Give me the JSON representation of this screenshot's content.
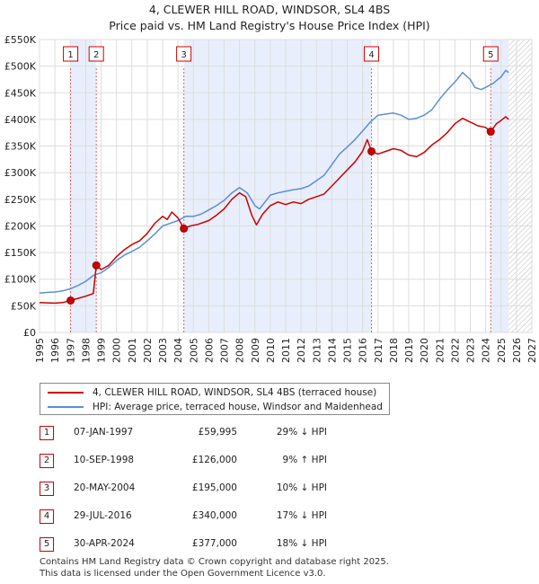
{
  "chart_data": {
    "type": "line",
    "title": "4, CLEWER HILL ROAD, WINDSOR, SL4 4BS",
    "subtitle": "Price paid vs. HM Land Registry's House Price Index (HPI)",
    "y_ticks": [
      "£0",
      "£50K",
      "£100K",
      "£150K",
      "£200K",
      "£250K",
      "£300K",
      "£350K",
      "£400K",
      "£450K",
      "£500K",
      "£550K"
    ],
    "x_ticks": [
      "1995",
      "1996",
      "1997",
      "1998",
      "1999",
      "2000",
      "2001",
      "2002",
      "2003",
      "2004",
      "2005",
      "2006",
      "2007",
      "2008",
      "2009",
      "2010",
      "2011",
      "2012",
      "2013",
      "2014",
      "2015",
      "2016",
      "2017",
      "2018",
      "2019",
      "2020",
      "2021",
      "2022",
      "2023",
      "2024",
      "2025",
      "2026",
      "2027"
    ],
    "xlim": [
      1995,
      2027
    ],
    "ylim": [
      0,
      550000
    ],
    "series": [
      {
        "name": "4, CLEWER HILL ROAD, WINDSOR, SL4 4BS (terraced house)",
        "color": "#cc0000",
        "points": [
          [
            1995.0,
            56000
          ],
          [
            1995.5,
            55500
          ],
          [
            1996.0,
            55000
          ],
          [
            1996.5,
            56000
          ],
          [
            1997.02,
            59995
          ],
          [
            1997.5,
            64000
          ],
          [
            1998.0,
            68000
          ],
          [
            1998.5,
            73000
          ],
          [
            1998.69,
            126000
          ],
          [
            1999.0,
            118000
          ],
          [
            1999.5,
            126000
          ],
          [
            2000.0,
            142000
          ],
          [
            2000.5,
            155000
          ],
          [
            2001.0,
            165000
          ],
          [
            2001.5,
            172000
          ],
          [
            2002.0,
            186000
          ],
          [
            2002.5,
            205000
          ],
          [
            2003.0,
            218000
          ],
          [
            2003.3,
            212000
          ],
          [
            2003.6,
            226000
          ],
          [
            2004.0,
            215000
          ],
          [
            2004.38,
            195000
          ],
          [
            2004.8,
            200000
          ],
          [
            2005.3,
            203000
          ],
          [
            2006.0,
            210000
          ],
          [
            2006.5,
            220000
          ],
          [
            2007.0,
            232000
          ],
          [
            2007.5,
            250000
          ],
          [
            2008.0,
            262000
          ],
          [
            2008.4,
            255000
          ],
          [
            2008.8,
            220000
          ],
          [
            2009.1,
            202000
          ],
          [
            2009.5,
            222000
          ],
          [
            2010.0,
            238000
          ],
          [
            2010.5,
            245000
          ],
          [
            2011.0,
            240000
          ],
          [
            2011.5,
            245000
          ],
          [
            2012.0,
            242000
          ],
          [
            2012.5,
            250000
          ],
          [
            2013.0,
            255000
          ],
          [
            2013.5,
            260000
          ],
          [
            2014.0,
            275000
          ],
          [
            2014.5,
            290000
          ],
          [
            2015.0,
            305000
          ],
          [
            2015.5,
            320000
          ],
          [
            2016.0,
            340000
          ],
          [
            2016.3,
            362000
          ],
          [
            2016.58,
            340000
          ],
          [
            2017.0,
            335000
          ],
          [
            2017.5,
            340000
          ],
          [
            2018.0,
            345000
          ],
          [
            2018.5,
            342000
          ],
          [
            2019.0,
            333000
          ],
          [
            2019.5,
            330000
          ],
          [
            2020.0,
            338000
          ],
          [
            2020.5,
            352000
          ],
          [
            2021.0,
            362000
          ],
          [
            2021.5,
            375000
          ],
          [
            2022.0,
            392000
          ],
          [
            2022.5,
            402000
          ],
          [
            2023.0,
            395000
          ],
          [
            2023.5,
            388000
          ],
          [
            2024.0,
            385000
          ],
          [
            2024.33,
            377000
          ],
          [
            2024.7,
            392000
          ],
          [
            2025.0,
            398000
          ],
          [
            2025.3,
            405000
          ],
          [
            2025.5,
            400000
          ]
        ]
      },
      {
        "name": "HPI: Average price, terraced house, Windsor and Maidenhead",
        "color": "#5b8fd6",
        "points": [
          [
            1995.0,
            74000
          ],
          [
            1995.5,
            75000
          ],
          [
            1996.0,
            76000
          ],
          [
            1996.5,
            78000
          ],
          [
            1997.0,
            82000
          ],
          [
            1997.5,
            88000
          ],
          [
            1998.0,
            96000
          ],
          [
            1998.5,
            107000
          ],
          [
            1999.0,
            112000
          ],
          [
            1999.5,
            122000
          ],
          [
            2000.0,
            135000
          ],
          [
            2000.5,
            145000
          ],
          [
            2001.0,
            152000
          ],
          [
            2001.5,
            160000
          ],
          [
            2002.0,
            172000
          ],
          [
            2002.5,
            185000
          ],
          [
            2003.0,
            200000
          ],
          [
            2003.5,
            205000
          ],
          [
            2004.0,
            210000
          ],
          [
            2004.5,
            218000
          ],
          [
            2005.0,
            218000
          ],
          [
            2005.5,
            222000
          ],
          [
            2006.0,
            230000
          ],
          [
            2006.5,
            238000
          ],
          [
            2007.0,
            248000
          ],
          [
            2007.5,
            262000
          ],
          [
            2008.0,
            272000
          ],
          [
            2008.5,
            262000
          ],
          [
            2009.0,
            238000
          ],
          [
            2009.3,
            232000
          ],
          [
            2009.8,
            250000
          ],
          [
            2010.0,
            258000
          ],
          [
            2010.5,
            262000
          ],
          [
            2011.0,
            265000
          ],
          [
            2011.5,
            268000
          ],
          [
            2012.0,
            270000
          ],
          [
            2012.5,
            275000
          ],
          [
            2013.0,
            285000
          ],
          [
            2013.5,
            295000
          ],
          [
            2014.0,
            315000
          ],
          [
            2014.5,
            335000
          ],
          [
            2015.0,
            348000
          ],
          [
            2015.5,
            362000
          ],
          [
            2016.0,
            378000
          ],
          [
            2016.5,
            395000
          ],
          [
            2017.0,
            408000
          ],
          [
            2017.5,
            410000
          ],
          [
            2018.0,
            412000
          ],
          [
            2018.5,
            408000
          ],
          [
            2019.0,
            400000
          ],
          [
            2019.5,
            402000
          ],
          [
            2020.0,
            408000
          ],
          [
            2020.5,
            418000
          ],
          [
            2021.0,
            438000
          ],
          [
            2021.5,
            455000
          ],
          [
            2022.0,
            470000
          ],
          [
            2022.5,
            488000
          ],
          [
            2023.0,
            475000
          ],
          [
            2023.3,
            460000
          ],
          [
            2023.7,
            456000
          ],
          [
            2024.0,
            460000
          ],
          [
            2024.5,
            468000
          ],
          [
            2025.0,
            480000
          ],
          [
            2025.3,
            492000
          ],
          [
            2025.5,
            488000
          ]
        ]
      }
    ],
    "sales": [
      {
        "num": "1",
        "date": "07-JAN-1997",
        "price": "£59,995",
        "hpi": "29% ↓ HPI",
        "year": 1997.02,
        "value": 59995
      },
      {
        "num": "2",
        "date": "10-SEP-1998",
        "price": "£126,000",
        "hpi": "9% ↑ HPI",
        "year": 1998.69,
        "value": 126000
      },
      {
        "num": "3",
        "date": "20-MAY-2004",
        "price": "£195,000",
        "hpi": "10% ↓ HPI",
        "year": 2004.38,
        "value": 195000
      },
      {
        "num": "4",
        "date": "29-JUL-2016",
        "price": "£340,000",
        "hpi": "17% ↓ HPI",
        "year": 2016.58,
        "value": 340000
      },
      {
        "num": "5",
        "date": "30-APR-2024",
        "price": "£377,000",
        "hpi": "18% ↓ HPI",
        "year": 2024.33,
        "value": 377000
      }
    ],
    "shaded_periods": [
      [
        1997.02,
        1998.69
      ],
      [
        2004.38,
        2016.58
      ],
      [
        2024.33,
        2025.5
      ]
    ],
    "hatched_from": 2025.5
  },
  "legend": {
    "line1": "4, CLEWER HILL ROAD, WINDSOR, SL4 4BS (terraced house)",
    "line2": "HPI: Average price, terraced house, Windsor and Maidenhead"
  },
  "footer": {
    "line1": "Contains HM Land Registry data © Crown copyright and database right 2025.",
    "line2": "This data is licensed under the Open Government Licence v3.0."
  }
}
